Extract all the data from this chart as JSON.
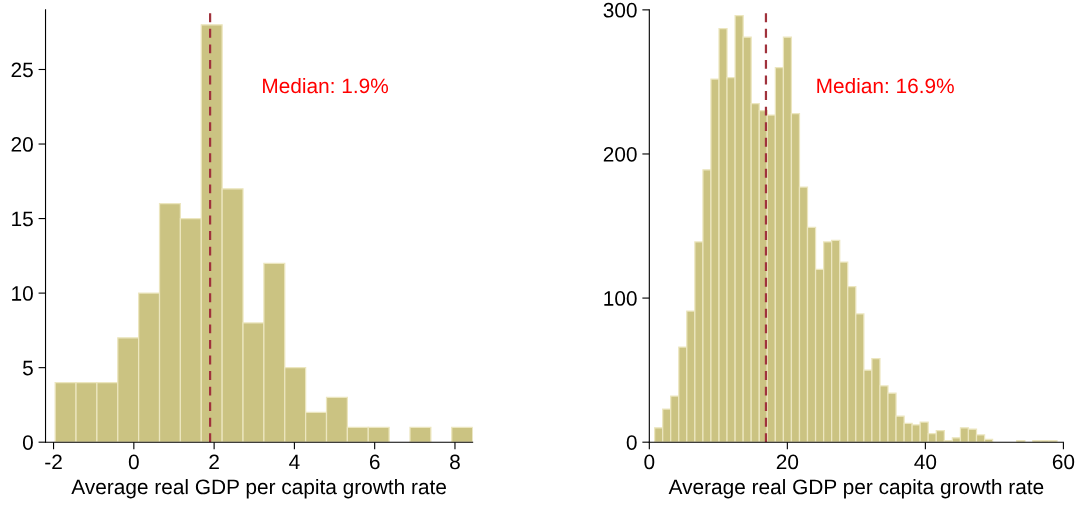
{
  "chart_data": [
    {
      "type": "histogram",
      "xlabel": "Average real GDP per capita growth rate",
      "color": "#cbc382",
      "bins": [
        -1.96,
        -1.44,
        -0.92,
        -0.4,
        0.12,
        0.64,
        1.16,
        1.68,
        2.2,
        2.72,
        3.24,
        3.76,
        4.28,
        4.8,
        5.32,
        5.84,
        6.36,
        6.88,
        7.4,
        7.92,
        8.44
      ],
      "values": [
        4,
        4,
        4,
        7,
        10,
        16,
        15,
        28,
        17,
        8,
        12,
        5,
        2,
        3,
        1,
        1,
        0,
        1,
        0,
        1
      ],
      "xlim": [
        -2.2,
        8.44
      ],
      "xticks": [
        -2,
        0,
        2,
        4,
        6,
        8
      ],
      "ylim": [
        0,
        29
      ],
      "yticks": [
        0,
        5,
        10,
        15,
        20,
        25
      ],
      "grid": false,
      "ref_lines": [
        {
          "axis": "x",
          "value": 1.9,
          "label": "Median: 1.9%",
          "color": "#a0323c",
          "line_style": "dashed"
        }
      ]
    },
    {
      "type": "histogram",
      "xlabel": "Average real GDP per capita growth rate",
      "color": "#cbc382",
      "bins": [
        0.77,
        1.94,
        3.1,
        4.27,
        5.43,
        6.6,
        7.77,
        8.93,
        10.1,
        11.26,
        12.43,
        13.6,
        14.76,
        15.93,
        17.09,
        18.26,
        19.43,
        20.59,
        21.76,
        22.92,
        24.09,
        25.26,
        26.42,
        27.59,
        28.75,
        29.92,
        31.09,
        32.25,
        33.42,
        34.58,
        35.75,
        36.92,
        38.08,
        39.25,
        40.41,
        41.58,
        42.75,
        43.91,
        45.08,
        46.24,
        47.41,
        48.58,
        49.74,
        50.91,
        52.07,
        53.24,
        54.41,
        55.57,
        56.74,
        57.9,
        59.07
      ],
      "values": [
        10,
        23,
        32,
        66,
        91,
        139,
        189,
        252,
        287,
        253,
        296,
        281,
        235,
        230,
        227,
        260,
        281,
        228,
        177,
        149,
        120,
        139,
        140,
        125,
        108,
        89,
        50,
        58,
        39,
        34,
        18,
        13,
        12,
        14,
        6,
        8,
        1,
        3,
        10,
        9,
        5,
        2,
        0,
        0,
        0,
        1,
        0,
        1,
        1,
        1
      ],
      "xlim": [
        0,
        60
      ],
      "xticks": [
        0,
        20,
        40,
        60
      ],
      "ylim": [
        0,
        300
      ],
      "yticks": [
        0,
        100,
        200,
        300
      ],
      "grid": false,
      "ref_lines": [
        {
          "axis": "x",
          "value": 16.9,
          "label": "Median: 16.9%",
          "color": "#a0323c",
          "line_style": "dashed"
        }
      ]
    }
  ]
}
